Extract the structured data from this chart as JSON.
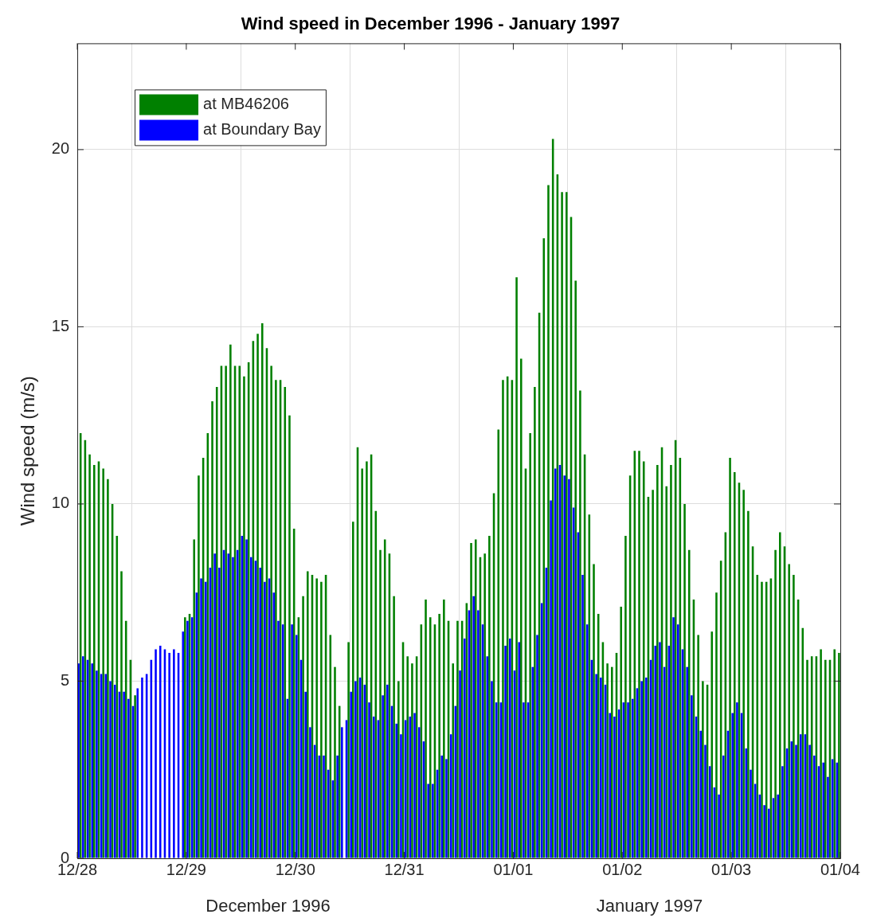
{
  "chart_data": {
    "type": "bar",
    "title": "Wind speed in December 1996 - January 1997",
    "ylabel": "Wind speed (m/s)",
    "x": [
      "1996-12-28T00:30",
      "1996-12-28T01:30",
      "1996-12-28T02:30",
      "1996-12-28T03:30",
      "1996-12-28T04:30",
      "1996-12-28T05:30",
      "1996-12-28T06:30",
      "1996-12-28T07:30",
      "1996-12-28T08:30",
      "1996-12-28T09:30",
      "1996-12-28T10:30",
      "1996-12-28T11:30",
      "1996-12-28T12:30",
      "1996-12-28T13:30",
      "1996-12-28T14:30",
      "1996-12-28T15:30",
      "1996-12-28T16:30",
      "1996-12-28T17:30",
      "1996-12-28T18:30",
      "1996-12-28T19:30",
      "1996-12-28T20:30",
      "1996-12-28T21:30",
      "1996-12-28T22:30",
      "1996-12-28T23:30",
      "1996-12-29T00:30",
      "1996-12-29T01:30",
      "1996-12-29T02:30",
      "1996-12-29T03:30",
      "1996-12-29T04:30",
      "1996-12-29T05:30",
      "1996-12-29T06:30",
      "1996-12-29T07:30",
      "1996-12-29T08:30",
      "1996-12-29T09:30",
      "1996-12-29T10:30",
      "1996-12-29T11:30",
      "1996-12-29T12:30",
      "1996-12-29T13:30",
      "1996-12-29T14:30",
      "1996-12-29T15:30",
      "1996-12-29T16:30",
      "1996-12-29T17:30",
      "1996-12-29T18:30",
      "1996-12-29T19:30",
      "1996-12-29T20:30",
      "1996-12-29T21:30",
      "1996-12-29T22:30",
      "1996-12-29T23:30",
      "1996-12-30T00:30",
      "1996-12-30T01:30",
      "1996-12-30T02:30",
      "1996-12-30T03:30",
      "1996-12-30T04:30",
      "1996-12-30T05:30",
      "1996-12-30T06:30",
      "1996-12-30T07:30",
      "1996-12-30T08:30",
      "1996-12-30T09:30",
      "1996-12-30T10:30",
      "1996-12-30T11:30",
      "1996-12-30T12:30",
      "1996-12-30T13:30",
      "1996-12-30T14:30",
      "1996-12-30T15:30",
      "1996-12-30T16:30",
      "1996-12-30T17:30",
      "1996-12-30T18:30",
      "1996-12-30T19:30",
      "1996-12-30T20:30",
      "1996-12-30T21:30",
      "1996-12-30T22:30",
      "1996-12-30T23:30",
      "1996-12-31T00:30",
      "1996-12-31T01:30",
      "1996-12-31T02:30",
      "1996-12-31T03:30",
      "1996-12-31T04:30",
      "1996-12-31T05:30",
      "1996-12-31T06:30",
      "1996-12-31T07:30",
      "1996-12-31T08:30",
      "1996-12-31T09:30",
      "1996-12-31T10:30",
      "1996-12-31T11:30",
      "1996-12-31T12:30",
      "1996-12-31T13:30",
      "1996-12-31T14:30",
      "1996-12-31T15:30",
      "1996-12-31T16:30",
      "1996-12-31T17:30",
      "1996-12-31T18:30",
      "1996-12-31T19:30",
      "1996-12-31T20:30",
      "1996-12-31T21:30",
      "1996-12-31T22:30",
      "1996-12-31T23:30",
      "1997-01-01T00:30",
      "1997-01-01T01:30",
      "1997-01-01T02:30",
      "1997-01-01T03:30",
      "1997-01-01T04:30",
      "1997-01-01T05:30",
      "1997-01-01T06:30",
      "1997-01-01T07:30",
      "1997-01-01T08:30",
      "1997-01-01T09:30",
      "1997-01-01T10:30",
      "1997-01-01T11:30",
      "1997-01-01T12:30",
      "1997-01-01T13:30",
      "1997-01-01T14:30",
      "1997-01-01T15:30",
      "1997-01-01T16:30",
      "1997-01-01T17:30",
      "1997-01-01T18:30",
      "1997-01-01T19:30",
      "1997-01-01T20:30",
      "1997-01-01T21:30",
      "1997-01-01T22:30",
      "1997-01-01T23:30",
      "1997-01-02T00:30",
      "1997-01-02T01:30",
      "1997-01-02T02:30",
      "1997-01-02T03:30",
      "1997-01-02T04:30",
      "1997-01-02T05:30",
      "1997-01-02T06:30",
      "1997-01-02T07:30",
      "1997-01-02T08:30",
      "1997-01-02T09:30",
      "1997-01-02T10:30",
      "1997-01-02T11:30",
      "1997-01-02T12:30",
      "1997-01-02T13:30",
      "1997-01-02T14:30",
      "1997-01-02T15:30",
      "1997-01-02T16:30",
      "1997-01-02T17:30",
      "1997-01-02T18:30",
      "1997-01-02T19:30",
      "1997-01-02T20:30",
      "1997-01-02T21:30",
      "1997-01-02T22:30",
      "1997-01-02T23:30",
      "1997-01-03T00:30",
      "1997-01-03T01:30",
      "1997-01-03T02:30",
      "1997-01-03T03:30",
      "1997-01-03T04:30",
      "1997-01-03T05:30",
      "1997-01-03T06:30",
      "1997-01-03T07:30",
      "1997-01-03T08:30",
      "1997-01-03T09:30",
      "1997-01-03T10:30",
      "1997-01-03T11:30",
      "1997-01-03T12:30",
      "1997-01-03T13:30",
      "1997-01-03T14:30",
      "1997-01-03T15:30",
      "1997-01-03T16:30",
      "1997-01-03T17:30",
      "1997-01-03T18:30",
      "1997-01-03T19:30",
      "1997-01-03T20:30",
      "1997-01-03T21:30",
      "1997-01-03T22:30",
      "1997-01-03T23:30"
    ],
    "series": [
      {
        "name": "at MB46206",
        "color": "#008000",
        "values": [
          12.0,
          11.8,
          11.4,
          11.1,
          11.2,
          11.0,
          10.7,
          10.0,
          9.1,
          8.1,
          6.7,
          5.6,
          4.6,
          null,
          null,
          null,
          null,
          null,
          null,
          null,
          null,
          null,
          null,
          6.8,
          6.9,
          9.0,
          10.8,
          11.3,
          12.0,
          12.9,
          13.3,
          13.9,
          13.9,
          14.5,
          13.9,
          13.9,
          13.6,
          14.0,
          14.6,
          14.8,
          15.1,
          14.4,
          13.9,
          13.5,
          13.5,
          13.3,
          12.5,
          9.3,
          6.8,
          7.4,
          8.1,
          8.0,
          7.9,
          7.8,
          8.0,
          6.3,
          5.4,
          4.3,
          null,
          6.1,
          9.5,
          11.6,
          11.0,
          11.2,
          11.4,
          9.8,
          8.7,
          9.0,
          8.6,
          7.4,
          5.0,
          6.1,
          5.7,
          5.5,
          5.7,
          6.6,
          7.3,
          6.8,
          6.6,
          6.9,
          7.3,
          6.7,
          5.5,
          6.7,
          6.7,
          7.2,
          8.9,
          9.0,
          8.5,
          8.6,
          9.1,
          10.3,
          12.1,
          13.5,
          13.6,
          13.5,
          16.4,
          14.1,
          11.0,
          12.0,
          13.3,
          15.4,
          17.5,
          19.0,
          20.3,
          19.3,
          18.8,
          18.8,
          18.1,
          16.3,
          13.2,
          11.4,
          9.7,
          8.3,
          6.9,
          6.1,
          5.5,
          5.4,
          5.8,
          7.1,
          9.1,
          10.8,
          11.5,
          11.5,
          11.2,
          10.2,
          10.4,
          11.1,
          11.6,
          10.5,
          11.1,
          11.8,
          11.3,
          10.0,
          8.7,
          7.3,
          6.3,
          5.0,
          4.9,
          6.4,
          7.5,
          8.4,
          9.2,
          11.3,
          10.9,
          10.6,
          10.4,
          9.8,
          8.8,
          8.0,
          7.8,
          7.8,
          7.9,
          8.7,
          9.2,
          8.8,
          8.3,
          8.0,
          7.3,
          6.5,
          5.6,
          5.7,
          5.7,
          5.9,
          5.6,
          5.6,
          5.9,
          5.8
        ]
      },
      {
        "name": "at Boundary Bay",
        "color": "#0000ff",
        "values": [
          5.5,
          5.7,
          5.6,
          5.5,
          5.3,
          5.2,
          5.2,
          5.0,
          4.9,
          4.7,
          4.7,
          4.5,
          4.3,
          4.8,
          5.1,
          5.2,
          5.6,
          5.9,
          6.0,
          5.9,
          5.8,
          5.9,
          5.8,
          6.4,
          6.7,
          6.8,
          7.5,
          7.9,
          7.8,
          8.2,
          8.6,
          8.2,
          8.7,
          8.6,
          8.5,
          8.7,
          9.1,
          9.0,
          8.5,
          8.4,
          8.2,
          7.8,
          7.9,
          7.5,
          6.7,
          6.6,
          4.5,
          6.6,
          6.3,
          5.6,
          4.7,
          3.7,
          3.2,
          2.9,
          2.9,
          2.5,
          2.2,
          2.9,
          3.7,
          3.9,
          4.7,
          5.0,
          5.1,
          4.9,
          4.4,
          4.0,
          3.9,
          4.6,
          4.9,
          4.3,
          3.8,
          3.5,
          3.9,
          4.0,
          4.1,
          3.7,
          3.3,
          2.1,
          2.1,
          2.5,
          2.9,
          2.8,
          3.5,
          4.3,
          5.3,
          6.2,
          7.0,
          7.4,
          7.0,
          6.6,
          5.7,
          5.0,
          4.4,
          4.4,
          6.0,
          6.2,
          5.3,
          6.1,
          4.4,
          4.4,
          5.4,
          6.3,
          7.2,
          8.2,
          10.1,
          11.0,
          11.1,
          10.8,
          10.7,
          9.9,
          9.2,
          8.0,
          6.6,
          5.6,
          5.2,
          5.1,
          4.9,
          4.1,
          4.0,
          4.2,
          4.4,
          4.4,
          4.5,
          4.8,
          5.0,
          5.1,
          5.6,
          6.0,
          6.1,
          5.4,
          6.0,
          6.8,
          6.6,
          5.9,
          5.4,
          4.6,
          4.0,
          3.6,
          3.2,
          2.6,
          2.0,
          1.8,
          2.9,
          3.6,
          4.1,
          4.4,
          4.1,
          3.1,
          2.5,
          2.1,
          1.8,
          1.5,
          1.4,
          1.7,
          1.8,
          2.6,
          3.1,
          3.3,
          3.2,
          3.5,
          3.5,
          3.2,
          2.9,
          2.6,
          2.7,
          2.3,
          2.8,
          2.7
        ]
      }
    ],
    "xlim": [
      "1996-12-28",
      "1997-01-04"
    ],
    "xticks": [
      {
        "value": "1996-12-28",
        "label": "12/28"
      },
      {
        "value": "1996-12-29",
        "label": "12/29"
      },
      {
        "value": "1996-12-30",
        "label": "12/30"
      },
      {
        "value": "1996-12-31",
        "label": "12/31"
      },
      {
        "value": "1997-01-01",
        "label": "01/01"
      },
      {
        "value": "1997-01-02",
        "label": "01/02"
      },
      {
        "value": "1997-01-03",
        "label": "01/03"
      },
      {
        "value": "1997-01-04",
        "label": "01/04"
      }
    ],
    "ylim": [
      0,
      23
    ],
    "yticks": [
      0,
      5,
      10,
      15,
      20
    ],
    "grid": true,
    "legend": "top left",
    "annotations": [
      "December 1996",
      "January 1997"
    ]
  }
}
